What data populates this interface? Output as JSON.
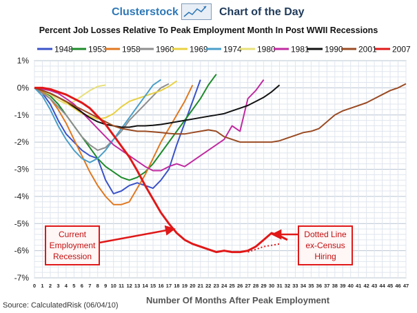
{
  "header": {
    "brand": "Clusterstock",
    "tagline": "Chart of the Day"
  },
  "source": "Source: CalculatedRisk (06/04/10)",
  "chart_data": {
    "type": "line",
    "title": "Percent Job Losses Relative To Peak Employment Month In Post WWII Recessions",
    "xlabel": "Number Of Months After Peak Employment",
    "ylabel": "",
    "xlim": [
      0,
      47
    ],
    "ylim": [
      -7,
      1
    ],
    "x_ticks": [
      0,
      1,
      2,
      3,
      4,
      5,
      6,
      7,
      8,
      9,
      10,
      11,
      12,
      13,
      14,
      15,
      16,
      17,
      18,
      19,
      20,
      21,
      22,
      23,
      24,
      25,
      26,
      27,
      28,
      29,
      30,
      31,
      32,
      33,
      34,
      35,
      36,
      37,
      38,
      39,
      40,
      41,
      42,
      43,
      44,
      45,
      46,
      47
    ],
    "y_ticks": [
      {
        "v": 1,
        "label": "1%"
      },
      {
        "v": 0,
        "label": "0%"
      },
      {
        "v": -1,
        "label": "-1%"
      },
      {
        "v": -2,
        "label": "-2%"
      },
      {
        "v": -3,
        "label": "-3%"
      },
      {
        "v": -4,
        "label": "-4%"
      },
      {
        "v": -5,
        "label": "-5%"
      },
      {
        "v": -6,
        "label": "-6%"
      },
      {
        "v": -7,
        "label": "-7%"
      }
    ],
    "grid": true,
    "legend_position": "top",
    "series": [
      {
        "name": "1948",
        "color": "#3a52c8",
        "values": [
          0,
          -0.2,
          -0.6,
          -1.2,
          -1.7,
          -2,
          -2.3,
          -2.5,
          -2.6,
          -3.4,
          -3.9,
          -3.8,
          -3.6,
          -3.5,
          -3.6,
          -3.7,
          -3.4,
          -3,
          -2.1,
          -1.3,
          -0.5,
          0.3
        ]
      },
      {
        "name": "1953",
        "color": "#1c8a2a",
        "values": [
          0,
          -0.1,
          -0.3,
          -0.6,
          -1,
          -1.4,
          -1.8,
          -2.2,
          -2.6,
          -2.9,
          -3.1,
          -3.3,
          -3.4,
          -3.3,
          -3.1,
          -2.8,
          -2.4,
          -2,
          -1.6,
          -1.2,
          -0.8,
          -0.4,
          0.1,
          0.5
        ]
      },
      {
        "name": "1958",
        "color": "#e07820",
        "values": [
          0,
          -0.15,
          -0.4,
          -0.8,
          -1.3,
          -1.9,
          -2.5,
          -3.1,
          -3.6,
          -4,
          -4.3,
          -4.3,
          -4.2,
          -3.7,
          -3.2,
          -2.6,
          -2,
          -1.5,
          -1,
          -0.5,
          0.1
        ]
      },
      {
        "name": "1960",
        "color": "#8e8e8e",
        "values": [
          0,
          -0.2,
          -0.4,
          -0.7,
          -1,
          -1.4,
          -1.8,
          -2.1,
          -2.3,
          -2.2,
          -1.9,
          -1.6,
          -1.2,
          -0.9,
          -0.6,
          -0.3,
          0,
          0.15
        ]
      },
      {
        "name": "1969",
        "color": "#e8d040",
        "values": [
          0,
          -0.1,
          -0.2,
          -0.35,
          -0.55,
          -0.75,
          -0.95,
          -1.05,
          -1.15,
          -1.1,
          -0.95,
          -0.7,
          -0.5,
          -0.4,
          -0.3,
          -0.2,
          -0.1,
          0.05,
          0.25
        ]
      },
      {
        "name": "1974",
        "color": "#4a9ec8",
        "values": [
          0,
          -0.3,
          -0.8,
          -1.4,
          -1.9,
          -2.3,
          -2.6,
          -2.75,
          -2.6,
          -2.3,
          -1.9,
          -1.5,
          -1.1,
          -0.7,
          -0.3,
          0.1,
          0.3
        ]
      },
      {
        "name": "1980",
        "color": "#e8e07a",
        "values": [
          0,
          -0.1,
          -0.25,
          -0.45,
          -0.6,
          -0.5,
          -0.3,
          -0.1,
          0.05,
          0.1
        ]
      },
      {
        "name": "1981",
        "color": "#c02aa0",
        "values": [
          0,
          -0.05,
          -0.1,
          -0.2,
          -0.4,
          -0.6,
          -0.9,
          -1.2,
          -1.5,
          -1.8,
          -2.1,
          -2.3,
          -2.5,
          -2.7,
          -2.9,
          -3.05,
          -3.05,
          -2.9,
          -2.8,
          -2.9,
          -2.7,
          -2.5,
          -2.3,
          -2.1,
          -1.9,
          -1.4,
          -1.6,
          -0.4,
          -0.1,
          0.3
        ]
      },
      {
        "name": "1990",
        "color": "#111111",
        "values": [
          0,
          -0.1,
          -0.2,
          -0.35,
          -0.5,
          -0.7,
          -0.9,
          -1.1,
          -1.25,
          -1.35,
          -1.4,
          -1.45,
          -1.45,
          -1.4,
          -1.4,
          -1.38,
          -1.35,
          -1.3,
          -1.25,
          -1.2,
          -1.15,
          -1.1,
          -1.05,
          -1,
          -0.95,
          -0.85,
          -0.75,
          -0.65,
          -0.5,
          -0.35,
          -0.15,
          0.1
        ]
      },
      {
        "name": "2001",
        "color": "#9a4a22",
        "values": [
          0,
          -0.1,
          -0.2,
          -0.35,
          -0.5,
          -0.65,
          -0.8,
          -0.95,
          -1.1,
          -1.25,
          -1.4,
          -1.5,
          -1.55,
          -1.6,
          -1.6,
          -1.62,
          -1.65,
          -1.68,
          -1.7,
          -1.7,
          -1.65,
          -1.6,
          -1.55,
          -1.6,
          -1.8,
          -1.9,
          -2,
          -2,
          -2,
          -2,
          -2,
          -1.95,
          -1.85,
          -1.75,
          -1.65,
          -1.6,
          -1.5,
          -1.25,
          -1,
          -0.85,
          -0.75,
          -0.65,
          -0.55,
          -0.4,
          -0.25,
          -0.1,
          0,
          0.15
        ]
      },
      {
        "name": "2007",
        "color": "#e01818",
        "values": [
          0,
          0,
          -0.05,
          -0.15,
          -0.25,
          -0.4,
          -0.55,
          -0.75,
          -1.05,
          -1.35,
          -1.75,
          -2.15,
          -2.55,
          -3.05,
          -3.6,
          -4.1,
          -4.6,
          -5,
          -5.35,
          -5.6,
          -5.75,
          -5.85,
          -5.95,
          -6.05,
          -6,
          -6.05,
          -6.05,
          -6,
          -5.85,
          -5.6,
          -5.35,
          -5.45,
          -5.6
        ]
      }
    ],
    "dotted_series": {
      "name": "ex-Census",
      "color": "#e01818",
      "x": [
        27,
        28,
        29,
        30,
        31
      ],
      "values": [
        -6.05,
        -5.95,
        -5.85,
        -5.8,
        -5.75
      ]
    },
    "annotations": [
      {
        "lines": [
          "Current",
          "Employment",
          "Recession"
        ]
      },
      {
        "lines": [
          "Dotted Line",
          "ex-Census",
          "Hiring"
        ]
      }
    ]
  }
}
